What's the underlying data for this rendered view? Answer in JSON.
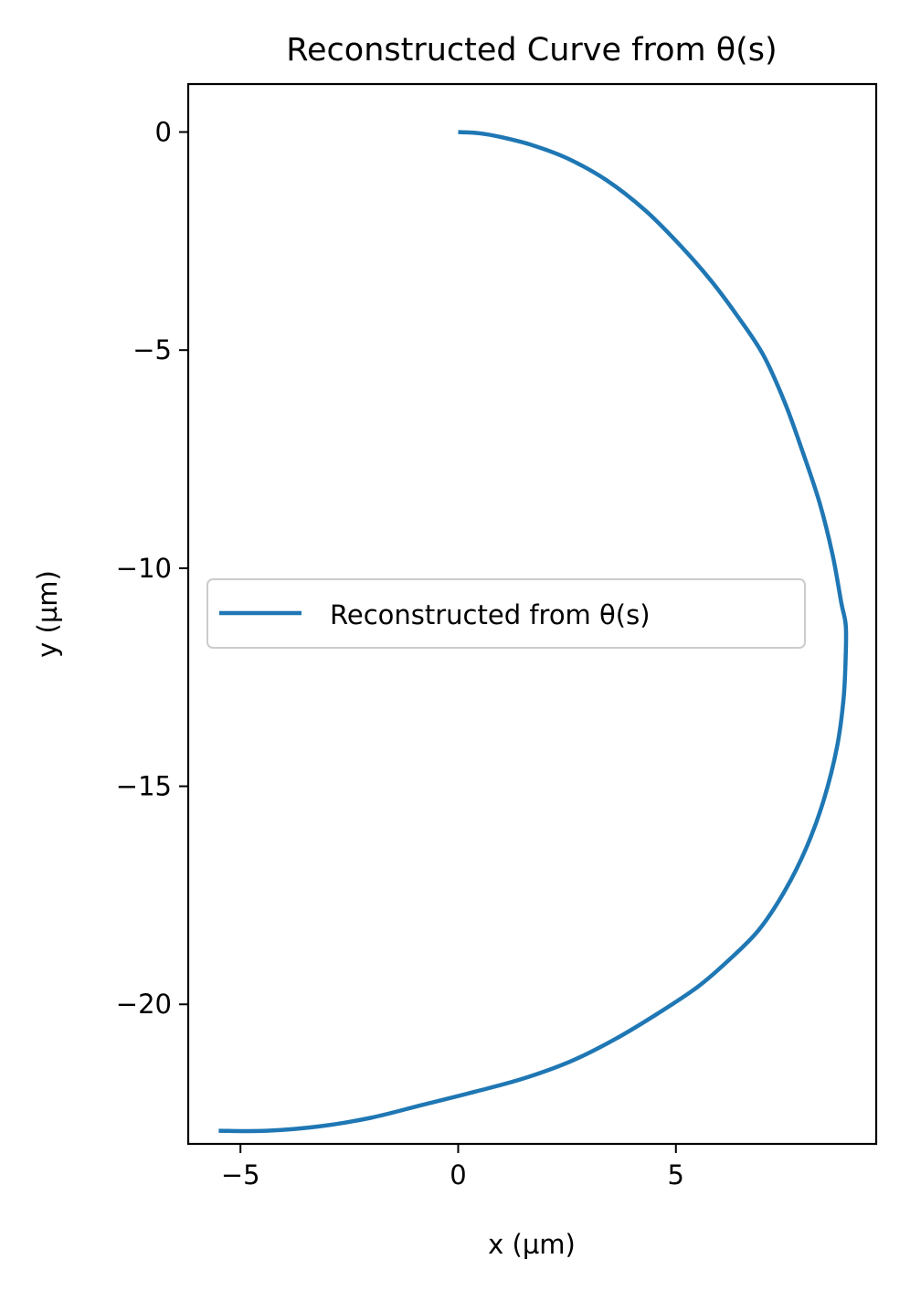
{
  "chart_data": {
    "type": "line",
    "title": "Reconstructed Curve from θ(s)",
    "xlabel": "x (µm)",
    "ylabel": "y (µm)",
    "xlim": [
      -6.2,
      9.6
    ],
    "ylim": [
      -23.2,
      1.1
    ],
    "xticks": [
      -5,
      0,
      5
    ],
    "xtick_labels": [
      "−5",
      "0",
      "5"
    ],
    "yticks": [
      0,
      -5,
      -10,
      -15,
      -20
    ],
    "ytick_labels": [
      "0",
      "−5",
      "−10",
      "−15",
      "−20"
    ],
    "grid": false,
    "legend_position": "center",
    "colors": {
      "series": "#1f77b4"
    },
    "series": [
      {
        "name": "Reconstructed from θ(s)",
        "x": [
          0.0,
          0.5,
          1.0,
          1.7,
          2.5,
          3.4,
          4.3,
          5.1,
          5.8,
          6.4,
          7.0,
          7.5,
          7.9,
          8.3,
          8.6,
          8.8,
          8.9,
          8.9,
          8.85,
          8.7,
          8.4,
          8.0,
          7.5,
          6.9,
          6.2,
          5.5,
          4.6,
          3.6,
          2.6,
          1.5,
          0.4,
          -0.8,
          -2.0,
          -3.2,
          -4.4,
          -5.5
        ],
        "y": [
          0.0,
          -0.03,
          -0.12,
          -0.3,
          -0.6,
          -1.1,
          -1.8,
          -2.6,
          -3.4,
          -4.2,
          -5.1,
          -6.2,
          -7.3,
          -8.5,
          -9.7,
          -10.8,
          -11.3,
          -12.0,
          -13.0,
          -14.1,
          -15.3,
          -16.4,
          -17.4,
          -18.3,
          -19.0,
          -19.6,
          -20.2,
          -20.8,
          -21.3,
          -21.7,
          -22.0,
          -22.3,
          -22.6,
          -22.8,
          -22.9,
          -22.9
        ]
      }
    ]
  }
}
